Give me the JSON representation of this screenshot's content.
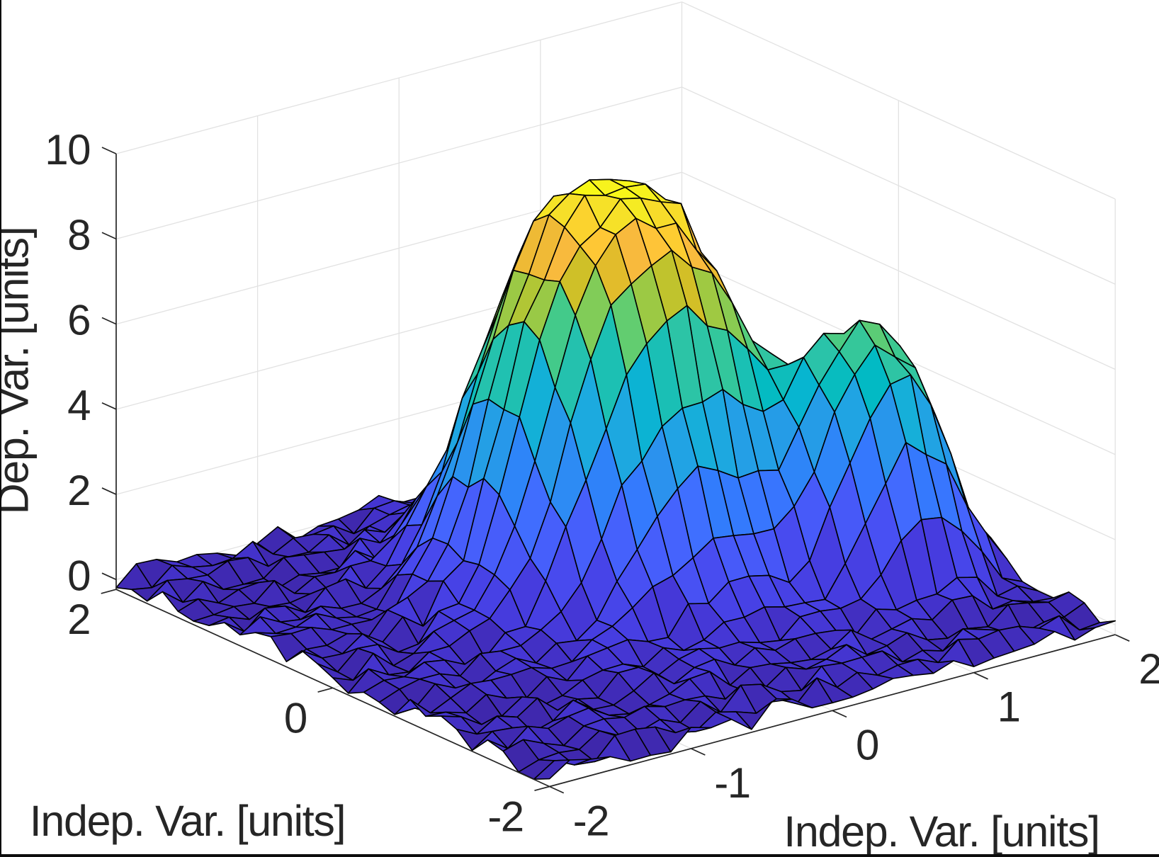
{
  "figure": {
    "background": "#ffffff",
    "border_color": "#0d0d0d"
  },
  "chart_data": {
    "type": "surface",
    "xlabel": "Indep. Var. [units]",
    "ylabel": "Indep. Var. [units]",
    "zlabel": "Dep. Var. [units]",
    "x_ticks": {
      "values": [
        -2,
        -1,
        0,
        1,
        2
      ],
      "labels": [
        "-2",
        "-1",
        "0",
        "1",
        "2"
      ]
    },
    "y_ticks": {
      "values": [
        -2,
        0,
        2
      ],
      "labels": [
        "-2",
        "0",
        "2"
      ]
    },
    "z_ticks": {
      "values": [
        0,
        2,
        4,
        6,
        8,
        10
      ],
      "labels": [
        "0",
        "2",
        "4",
        "6",
        "8",
        "10"
      ]
    },
    "xlim": [
      -2,
      2
    ],
    "ylim": [
      -2,
      2
    ],
    "z_top": 10,
    "grid": true,
    "colormap": {
      "name": "parula"
    },
    "colors": {
      "axis": "#262626",
      "grid": "#e2e2e2",
      "edge": "#000000"
    },
    "x": [
      -2.0,
      -1.8571,
      -1.7143,
      -1.5714,
      -1.4286,
      -1.2857,
      -1.1429,
      -1.0,
      -0.8571,
      -0.7143,
      -0.5714,
      -0.4286,
      -0.2857,
      -0.1429,
      0.0,
      0.1429,
      0.2857,
      0.4286,
      0.5714,
      0.7143,
      0.8571,
      1.0,
      1.1429,
      1.2857,
      1.4286,
      1.5714,
      1.7143,
      1.8571,
      2.0
    ],
    "y": [
      -2.0,
      -1.8571,
      -1.7143,
      -1.5714,
      -1.4286,
      -1.2857,
      -1.1429,
      -1.0,
      -0.8571,
      -0.7143,
      -0.5714,
      -0.4286,
      -0.2857,
      -0.1429,
      0.0,
      0.1429,
      0.2857,
      0.4286,
      0.5714,
      0.7143,
      0.8571,
      1.0,
      1.1429,
      1.2857,
      1.4286,
      1.5714,
      1.7143,
      1.8571,
      2.0
    ],
    "z": [
      [
        -0.05,
        0.265,
        0.153,
        0.087,
        -0.144,
        -0.136,
        -0.181,
        0.265,
        0.132,
        0.199,
        -0.163,
        0.358,
        0.292,
        -0.037,
        -0.048,
        -0.044,
        0.022,
        0.14,
        0.087,
        0.007,
        0.174,
        -0.089,
        -0.015,
        0.016,
        0.055,
        0.223,
        -0.102,
        0.059,
        0.093
      ],
      [
        -0.224,
        0.085,
        -0.144,
        -0.193,
        0.293,
        0.312,
        0.237,
        -0.023,
        -0.123,
        0.205,
        0.084,
        -0.077,
        0.134,
        -0.107,
        0.371,
        0.024,
        0.243,
        0.053,
        0.162,
        0.171,
        -0.032,
        0.383,
        0.268,
        0.345,
        0.309,
        0.137,
        0.301,
        -0.16,
        -0.112
      ],
      [
        -0.22,
        -0.062,
        -0.02,
        -0.074,
        0.238,
        -0.005,
        -0.033,
        0.122,
        -0.081,
        0.29,
        -0.09,
        0.416,
        0.311,
        0.011,
        -0.087,
        0.355,
        0.298,
        0.309,
        0.328,
        -0.055,
        0.09,
        -0.052,
        0.34,
        0.197,
        0.025,
        -0.134,
        -0.014,
        -0.02,
        0.187
      ],
      [
        0.104,
        0.247,
        0.033,
        -0.147,
        0.186,
        0.226,
        0.133,
        0.263,
        0.13,
        0.162,
        0.126,
        -0.076,
        -0.018,
        -0.048,
        0.287,
        0.118,
        0.225,
        0.439,
        0.079,
        0.159,
        0.336,
        0.043,
        -0.048,
        0.055,
        -0.032,
        0.362,
        0.275,
        0.162,
        0.275
      ],
      [
        0.199,
        -0.125,
        0.267,
        0.089,
        0.249,
        0.313,
        0.018,
        -0.075,
        0.008,
        0.135,
        0.364,
        0.405,
        -0.041,
        0.245,
        0.204,
        0.105,
        0.053,
        0.168,
        0.49,
        0.151,
        0.259,
        0.376,
        0.219,
        0.558,
        0.53,
        0.091,
        0.162,
        0.01,
        -0.027
      ],
      [
        -0.21,
        0.11,
        0.065,
        -0.164,
        -0.025,
        0.334,
        -0.007,
        -0.037,
        0.171,
        0.462,
        0.082,
        0.335,
        0.403,
        0.137,
        0.416,
        0.23,
        0.376,
        0.374,
        0.317,
        0.091,
        0.56,
        0.42,
        0.515,
        0.536,
        0.793,
        0.672,
        0.106,
        0.213,
        -0.026
      ],
      [
        0.123,
        -0.119,
        0.175,
        0.027,
        0.343,
        -0.068,
        0.065,
        -0.034,
        0.43,
        0.43,
        0.123,
        0.369,
        0.484,
        0.373,
        0.385,
        0.246,
        0.169,
        0.597,
        0.604,
        0.54,
        0.633,
        1.075,
        1.749,
        2.115,
        2.041,
        1.594,
        0.986,
        0.235,
        0.025
      ],
      [
        0.265,
        0.121,
        -0.186,
        -0.117,
        0.207,
        -0.125,
        -0.016,
        0.221,
        0.328,
        0.341,
        0.152,
        0.47,
        0.28,
        0.399,
        0.689,
        0.676,
        0.789,
        0.666,
        0.635,
        0.587,
        1.301,
        2.111,
        2.926,
        3.761,
        3.351,
        3.002,
        1.918,
        1.109,
        0.389
      ],
      [
        0.096,
        0.065,
        -0.078,
        0.227,
        0.012,
        -0.101,
        0.262,
        0.041,
        0.493,
        0.556,
        0.621,
        0.451,
        0.419,
        1.084,
        0.963,
        1.343,
        1.35,
        1.239,
        0.946,
        1.331,
        2.457,
        3.369,
        4.291,
        4.962,
        5.057,
        4.23,
        2.943,
        1.36,
        0.707
      ],
      [
        0.323,
        -0.12,
        0.103,
        0.319,
        0.27,
        0.274,
        0.309,
        0.165,
        0.193,
        0.583,
        0.77,
        1.076,
        1.444,
        1.581,
        1.871,
        2.203,
        2.137,
        2.051,
        2.039,
        2.439,
        3.12,
        4.403,
        5.156,
        5.717,
        5.31,
        4.933,
        3.691,
        1.971,
        0.924
      ],
      [
        -0.191,
        -0.171,
        0.273,
        0.047,
        -0.053,
        0.191,
        0.363,
        0.125,
        0.461,
        0.394,
        0.749,
        1.532,
        2.152,
        2.804,
        3.327,
        3.728,
        3.499,
        3.198,
        3.24,
        3.126,
        4.008,
        4.871,
        5.526,
        6.135,
        5.915,
        5.282,
        3.848,
        2.075,
        0.769
      ],
      [
        -0.07,
        0.109,
        0.219,
        0.214,
        0.037,
        0.435,
        0.368,
        0.368,
        0.611,
        0.911,
        1.461,
        2.362,
        3.499,
        3.938,
        4.623,
        4.926,
        4.943,
        5.112,
        4.631,
        4.34,
        4.485,
        5.352,
        5.791,
        5.658,
        5.52,
        4.794,
        3.608,
        2.076,
        0.598
      ],
      [
        -0.001,
        0.153,
        0.108,
        0.324,
        0.246,
        0.018,
        0.038,
        0.507,
        0.523,
        1.465,
        2.611,
        3.578,
        4.656,
        5.796,
        6.4,
        6.809,
        7.043,
        6.437,
        6.205,
        5.643,
        5.024,
        5.022,
        5.118,
        4.934,
        4.535,
        4.016,
        2.468,
        1.358,
        0.795
      ],
      [
        -0.19,
        0.256,
        -0.01,
        -0.073,
        0.27,
        0.28,
        0.512,
        0.673,
        1.221,
        1.833,
        3.026,
        4.757,
        6.122,
        7.268,
        7.634,
        7.94,
        8.175,
        7.656,
        7.39,
        6.562,
        5.544,
        5.093,
        4.603,
        3.766,
        3.596,
        2.585,
        1.837,
        0.764,
        0.593
      ],
      [
        0.008,
        -0.178,
        0.326,
        -0.088,
        0.068,
        0.462,
        0.591,
        0.706,
        1.407,
        2.425,
        3.821,
        5.423,
        6.993,
        8.033,
        8.636,
        8.888,
        8.524,
        8.521,
        7.759,
        7.147,
        5.948,
        4.98,
        3.595,
        2.566,
        1.841,
        1.532,
        0.904,
        0.232,
        0.013
      ],
      [
        0.175,
        -0.147,
        0.279,
        0.242,
        -0.062,
        0.0,
        0.641,
        0.695,
        1.482,
        2.995,
        4.693,
        6.375,
        7.62,
        8.326,
        8.636,
        9.179,
        9.07,
        8.855,
        8.688,
        7.412,
        6.342,
        4.548,
        3.29,
        1.848,
        1.041,
        0.521,
        0.507,
        0.394,
        0.225
      ],
      [
        0.314,
        0.014,
        -0.014,
        0.326,
        0.01,
        0.473,
        0.126,
        1.06,
        1.407,
        3.211,
        4.702,
        6.639,
        7.492,
        8.604,
        9.226,
        9.095,
        9.159,
        9.107,
        8.617,
        7.906,
        6.585,
        5.111,
        2.978,
        1.742,
        1.214,
        0.712,
        0.27,
        0.27,
        0.041
      ],
      [
        -0.108,
        0.058,
        0.018,
        0.166,
        -0.076,
        0.469,
        0.637,
        0.889,
        1.632,
        2.838,
        4.781,
        6.389,
        7.461,
        8.731,
        9.099,
        9.292,
        9.178,
        9.015,
        8.532,
        7.99,
        6.642,
        4.542,
        2.852,
        1.681,
        1.044,
        0.701,
        0.069,
        0.239,
        0.088
      ],
      [
        0.311,
        0.257,
        0.274,
        0.096,
        0.095,
        0.073,
        0.096,
        0.89,
        1.607,
        2.926,
        4.5,
        5.896,
        7.387,
        8.42,
        8.876,
        8.748,
        8.868,
        8.522,
        8.497,
        7.414,
        5.87,
        4.489,
        2.87,
        1.477,
        0.564,
        0.481,
        0.246,
        0.322,
        0.153
      ],
      [
        0.243,
        0.095,
        0.117,
        0.307,
        0.077,
        -0.024,
        0.028,
        0.701,
        1.233,
        2.307,
        3.436,
        4.92,
        6.224,
        7.423,
        8.172,
        8.347,
        8.384,
        8.385,
        7.501,
        6.611,
        5.414,
        3.685,
        2.395,
        1.462,
        0.873,
        0.138,
        0.439,
        0.155,
        0.0
      ],
      [
        0.026,
        0.32,
        0.072,
        0.002,
        0.188,
        0.01,
        -0.002,
        0.223,
        0.66,
        1.46,
        2.586,
        4.181,
        5.214,
        6.339,
        7.329,
        7.444,
        7.564,
        6.987,
        6.339,
        5.251,
        4.057,
        2.789,
        1.581,
        0.718,
        0.272,
        0.245,
        0.023,
        0.07,
        0.121
      ],
      [
        0.146,
        -0.194,
        0.23,
        0.153,
        -0.123,
        0.331,
        0.406,
        0.063,
        0.46,
        1.278,
        2.069,
        2.799,
        3.893,
        4.925,
        5.668,
        6.097,
        5.978,
        5.705,
        5.207,
        3.9,
        2.944,
        2.15,
        1.407,
        0.645,
        0.36,
        -0.001,
        0.128,
        0.145,
        -0.033
      ],
      [
        -0.087,
        -0.018,
        -0.199,
        -0.022,
        -0.065,
        0.017,
        -0.063,
        0.421,
        0.416,
        0.775,
        1.353,
        1.899,
        2.471,
        3.459,
        4.057,
        4.455,
        4.3,
        3.851,
        3.387,
        2.698,
        2.059,
        1.306,
        0.657,
        0.67,
        0.299,
        0.027,
        -0.081,
        -0.076,
        -0.044
      ],
      [
        -0.15,
        -0.128,
        -0.064,
        -0.112,
        0.293,
        -0.132,
        0.129,
        0.103,
        0.489,
        0.176,
        0.607,
        1.32,
        1.754,
        2.221,
        2.317,
        2.495,
        2.775,
        2.71,
        2.126,
        1.65,
        1.001,
        0.854,
        0.253,
        0.163,
        0.136,
        0.141,
        -0.025,
        -0.111,
        0.141
      ],
      [
        -0.086,
        0.079,
        -0.142,
        0.045,
        0.084,
        -0.162,
        0.007,
        -0.081,
        -0.084,
        0.485,
        0.249,
        0.704,
        0.653,
        1.148,
        1.415,
        1.458,
        1.398,
        1.247,
        0.997,
        1.05,
        0.747,
        0.624,
        0.042,
        0.298,
        0.373,
        -0.058,
        -0.137,
        0.213,
        0.11
      ],
      [
        0.208,
        -0.165,
        0.197,
        -0.115,
        -0.125,
        -0.114,
        0.249,
        0.183,
        0.124,
        0.065,
        0.393,
        0.207,
        0.538,
        0.448,
        0.515,
        0.622,
        0.539,
        0.726,
        0.498,
        0.241,
        0.499,
        0.145,
        0.181,
        0.348,
        0.176,
        -0.112,
        0.319,
        0.138,
        -0.031
      ],
      [
        -0.175,
        0.184,
        0.096,
        0.056,
        0.259,
        0.212,
        -0.122,
        -0.025,
        -0.048,
        0.234,
        -0.13,
        0.187,
        0.326,
        0.428,
        0.175,
        0.457,
        0.075,
        0.454,
        0.032,
        0.14,
        0.321,
        -0.055,
        -0.031,
        0.221,
        0.208,
        0.154,
        0.172,
        0.081,
        -0.086
      ],
      [
        -0.067,
        -0.152,
        0.246,
        0.076,
        -0.016,
        0.025,
        0.295,
        -0.125,
        0.118,
        0.084,
        0.151,
        -0.158,
        0.316,
        0.361,
        0.175,
        0.253,
        0.377,
        0.255,
        -0.054,
        0.163,
        0.168,
        0.059,
        0.218,
        0.316,
        0.302,
        0.037,
        -0.154,
        0.309,
        0.222
      ],
      [
        -0.19,
        0.244,
        0.22,
        0.035,
        0.08,
        -0.018,
        -0.197,
        -0.039,
        0.22,
        -0.203,
        -0.019,
        0.023,
        0.105,
        0.317,
        0.012,
        0.016,
        0.227,
        0.072,
        -0.054,
        0.064,
        -0.109,
        -0.096,
        0.071,
        0.022,
        0.282,
        -0.023,
        0.088,
        0.109,
        -0.231
      ]
    ]
  }
}
